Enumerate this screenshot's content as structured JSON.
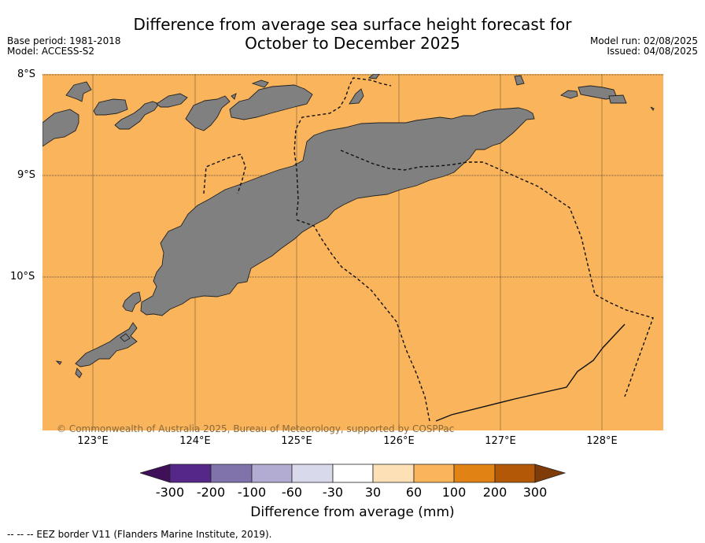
{
  "title": {
    "line1": "Difference from average sea surface height forecast for",
    "line2": "October to December 2025"
  },
  "meta_left": {
    "base_period": "Base period: 1981-2018",
    "model": "Model: ACCESS-S2"
  },
  "meta_right": {
    "model_run": "Model run: 02/08/2025",
    "issued": "Issued: 04/08/2025"
  },
  "map": {
    "lat_labels": [
      "8°S",
      "9°S",
      "10°S"
    ],
    "lon_labels": [
      "123°E",
      "124°E",
      "125°E",
      "126°E",
      "127°E",
      "128°E"
    ],
    "copyright": "© Commonwealth of Australia 2025, Bureau of Meteorology, supported by COSPPac",
    "ocean_color": "#f9b45c",
    "land_color": "#808080"
  },
  "colorbar": {
    "title": "Difference from average (mm)",
    "labels": [
      "-300",
      "-200",
      "-100",
      "-60",
      "-30",
      "30",
      "60",
      "100",
      "200",
      "300"
    ],
    "colors": [
      "#3f0f5a",
      "#542788",
      "#8073ac",
      "#b2abd2",
      "#d8daeb",
      "#ffffff",
      "#fee0b6",
      "#f9b45c",
      "#e08214",
      "#b35806",
      "#7f3b08"
    ]
  },
  "eez_note": "--  --  -- EEZ border V11 (Flanders Marine Institute, 2019)."
}
